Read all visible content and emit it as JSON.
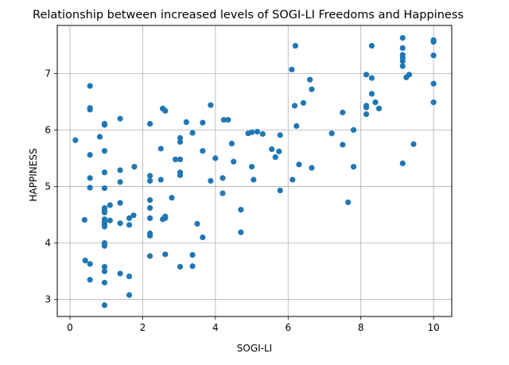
{
  "chart_data": {
    "type": "scatter",
    "title": "Relationship between increased levels of SOGI-LI Freedoms and Happiness",
    "xlabel": "SOGI-LI",
    "ylabel": "HAPPINESS",
    "xlim": [
      -0.35,
      10.5
    ],
    "ylim": [
      2.7,
      7.85
    ],
    "xticks": [
      0,
      2,
      4,
      6,
      8,
      10
    ],
    "yticks": [
      3,
      4,
      5,
      6,
      7
    ],
    "xtick_labels": [
      "0",
      "2",
      "4",
      "6",
      "8",
      "10"
    ],
    "ytick_labels": [
      "3",
      "4",
      "5",
      "6",
      "7"
    ],
    "grid": true,
    "marker_color": "#1f77b4",
    "points": [
      [
        0.15,
        5.82
      ],
      [
        0.4,
        4.41
      ],
      [
        0.42,
        3.69
      ],
      [
        0.55,
        6.78
      ],
      [
        0.55,
        6.39
      ],
      [
        0.55,
        6.36
      ],
      [
        0.55,
        5.56
      ],
      [
        0.55,
        5.15
      ],
      [
        0.55,
        4.98
      ],
      [
        0.55,
        3.63
      ],
      [
        0.55,
        3.35
      ],
      [
        0.82,
        5.88
      ],
      [
        0.95,
        6.11
      ],
      [
        0.95,
        6.09
      ],
      [
        0.95,
        5.63
      ],
      [
        0.95,
        5.25
      ],
      [
        0.95,
        4.97
      ],
      [
        0.95,
        4.62
      ],
      [
        0.95,
        4.58
      ],
      [
        0.95,
        4.54
      ],
      [
        0.95,
        4.42
      ],
      [
        0.95,
        4.37
      ],
      [
        0.95,
        4.33
      ],
      [
        0.95,
        4.29
      ],
      [
        0.95,
        4.0
      ],
      [
        0.95,
        3.95
      ],
      [
        0.95,
        3.58
      ],
      [
        0.95,
        3.5
      ],
      [
        0.95,
        3.3
      ],
      [
        0.95,
        2.9
      ],
      [
        1.1,
        4.67
      ],
      [
        1.1,
        4.4
      ],
      [
        1.38,
        6.2
      ],
      [
        1.38,
        5.29
      ],
      [
        1.38,
        5.08
      ],
      [
        1.38,
        4.71
      ],
      [
        1.38,
        4.35
      ],
      [
        1.38,
        3.46
      ],
      [
        1.63,
        4.44
      ],
      [
        1.63,
        4.32
      ],
      [
        1.63,
        3.41
      ],
      [
        1.63,
        3.08
      ],
      [
        1.75,
        4.49
      ],
      [
        1.77,
        5.35
      ],
      [
        2.2,
        6.11
      ],
      [
        2.2,
        5.19
      ],
      [
        2.2,
        5.1
      ],
      [
        2.2,
        4.76
      ],
      [
        2.2,
        4.62
      ],
      [
        2.2,
        4.44
      ],
      [
        2.2,
        4.17
      ],
      [
        2.2,
        4.13
      ],
      [
        2.2,
        3.77
      ],
      [
        2.5,
        5.67
      ],
      [
        2.5,
        5.12
      ],
      [
        2.55,
        6.38
      ],
      [
        2.55,
        4.42
      ],
      [
        2.62,
        6.34
      ],
      [
        2.62,
        4.47
      ],
      [
        2.62,
        4.44
      ],
      [
        2.62,
        3.8
      ],
      [
        2.8,
        4.8
      ],
      [
        2.9,
        5.48
      ],
      [
        3.03,
        5.86
      ],
      [
        3.03,
        5.79
      ],
      [
        3.03,
        5.48
      ],
      [
        3.03,
        5.25
      ],
      [
        3.03,
        5.2
      ],
      [
        3.03,
        3.58
      ],
      [
        3.2,
        6.14
      ],
      [
        3.37,
        5.95
      ],
      [
        3.37,
        3.79
      ],
      [
        3.37,
        3.59
      ],
      [
        3.5,
        4.34
      ],
      [
        3.65,
        6.13
      ],
      [
        3.65,
        5.63
      ],
      [
        3.65,
        4.1
      ],
      [
        3.87,
        6.44
      ],
      [
        3.87,
        5.1
      ],
      [
        4.0,
        5.5
      ],
      [
        4.2,
        5.15
      ],
      [
        4.2,
        4.88
      ],
      [
        4.23,
        6.18
      ],
      [
        4.35,
        6.18
      ],
      [
        4.45,
        5.76
      ],
      [
        4.5,
        5.44
      ],
      [
        4.7,
        4.59
      ],
      [
        4.7,
        4.19
      ],
      [
        4.9,
        5.94
      ],
      [
        5.0,
        5.96
      ],
      [
        5.0,
        5.35
      ],
      [
        5.05,
        5.12
      ],
      [
        5.15,
        5.97
      ],
      [
        5.3,
        5.93
      ],
      [
        5.55,
        5.66
      ],
      [
        5.65,
        5.52
      ],
      [
        5.75,
        5.62
      ],
      [
        5.78,
        5.91
      ],
      [
        5.78,
        4.93
      ],
      [
        6.1,
        7.07
      ],
      [
        6.12,
        5.12
      ],
      [
        6.18,
        6.43
      ],
      [
        6.2,
        7.49
      ],
      [
        6.23,
        6.07
      ],
      [
        6.3,
        5.39
      ],
      [
        6.42,
        6.48
      ],
      [
        6.6,
        6.89
      ],
      [
        6.65,
        6.72
      ],
      [
        6.65,
        5.33
      ],
      [
        7.2,
        5.94
      ],
      [
        7.5,
        6.31
      ],
      [
        7.5,
        5.74
      ],
      [
        7.65,
        4.72
      ],
      [
        7.8,
        6.0
      ],
      [
        7.8,
        5.35
      ],
      [
        8.15,
        6.98
      ],
      [
        8.15,
        6.43
      ],
      [
        8.15,
        6.4
      ],
      [
        8.15,
        6.28
      ],
      [
        8.3,
        7.49
      ],
      [
        8.3,
        6.92
      ],
      [
        8.3,
        6.64
      ],
      [
        8.4,
        6.49
      ],
      [
        8.5,
        6.38
      ],
      [
        9.15,
        7.63
      ],
      [
        9.15,
        7.45
      ],
      [
        9.15,
        7.33
      ],
      [
        9.15,
        7.28
      ],
      [
        9.15,
        7.22
      ],
      [
        9.15,
        7.13
      ],
      [
        9.15,
        5.41
      ],
      [
        9.25,
        6.93
      ],
      [
        9.33,
        6.98
      ],
      [
        9.45,
        5.75
      ],
      [
        10.0,
        7.59
      ],
      [
        10.0,
        7.56
      ],
      [
        10.0,
        7.32
      ],
      [
        10.0,
        6.82
      ],
      [
        10.0,
        6.49
      ]
    ]
  }
}
